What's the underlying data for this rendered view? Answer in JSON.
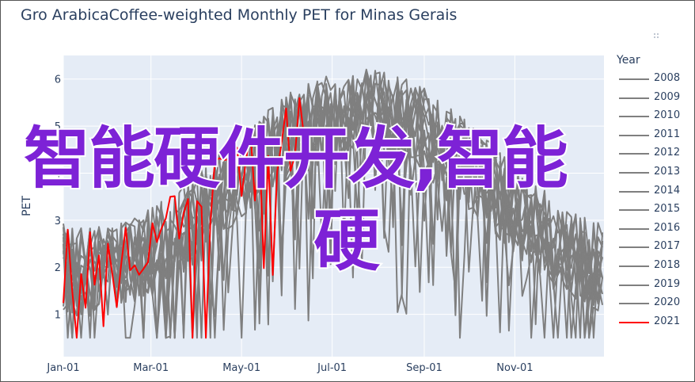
{
  "chart_data": {
    "type": "line",
    "title": "Gro ArabicaCoffee-weighted Monthly PET for Minas Gerais",
    "xlabel": "",
    "ylabel": "PET",
    "x_domain": [
      "2021-01-01",
      "2021-12-31"
    ],
    "x_tick_labels": [
      "Jan-01",
      "Mar-01",
      "May-01",
      "Jul-01",
      "Sep-01",
      "Nov-01"
    ],
    "x_tick_dates": [
      "2021-01-01",
      "2021-03-01",
      "2021-05-01",
      "2021-07-01",
      "2021-09-01",
      "2021-11-01"
    ],
    "y_ticks": [
      1,
      2,
      3,
      4,
      5,
      6
    ],
    "ylim": [
      0.1,
      6.5
    ],
    "grid": true,
    "legend_title": "Year",
    "legend_placement": "right",
    "background_color": "#e5ecf6",
    "series": [
      {
        "name": "2008",
        "color": "#7f7f7f"
      },
      {
        "name": "2009",
        "color": "#7f7f7f"
      },
      {
        "name": "2010",
        "color": "#7f7f7f"
      },
      {
        "name": "2011",
        "color": "#7f7f7f"
      },
      {
        "name": "2012",
        "color": "#7f7f7f"
      },
      {
        "name": "2013",
        "color": "#7f7f7f"
      },
      {
        "name": "2014",
        "color": "#7f7f7f"
      },
      {
        "name": "2015",
        "color": "#7f7f7f"
      },
      {
        "name": "2016",
        "color": "#7f7f7f"
      },
      {
        "name": "2017",
        "color": "#7f7f7f"
      },
      {
        "name": "2018",
        "color": "#7f7f7f"
      },
      {
        "name": "2019",
        "color": "#7f7f7f"
      },
      {
        "name": "2020",
        "color": "#7f7f7f"
      },
      {
        "name": "2021",
        "color": "#ff0000",
        "end_date": "2021-06-14"
      }
    ]
  },
  "overlay": {
    "line1": "智能硬件开发,智能",
    "line2": "硬",
    "color": "#7d22d6"
  }
}
